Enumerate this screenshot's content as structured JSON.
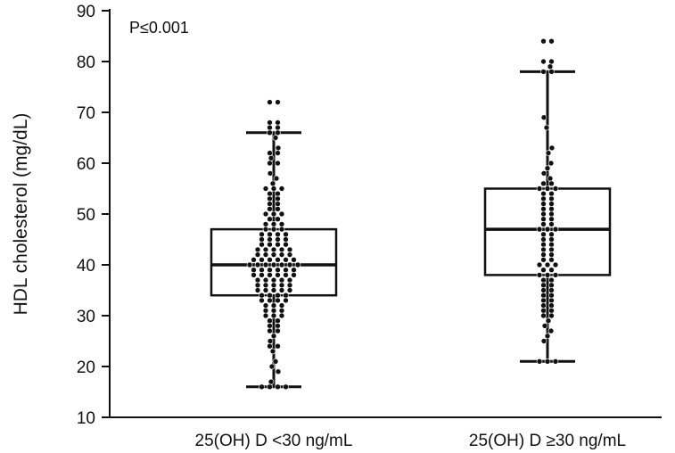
{
  "chart_data": {
    "type": "box",
    "ylabel": "HDL cholesterol (mg/dL)",
    "xlabel": "",
    "ylim": [
      10,
      90
    ],
    "yticks": [
      10,
      20,
      30,
      40,
      50,
      60,
      70,
      80,
      90
    ],
    "annotation": "P≤0.001",
    "grid": false,
    "categories": [
      "25(OH) D <30 ng/mL",
      "25(OH) D ≥30 ng/mL"
    ],
    "boxes": [
      {
        "category": "25(OH) D <30 ng/mL",
        "whisker_low": 16,
        "q1": 34,
        "median": 40,
        "q3": 47,
        "whisker_high": 66
      },
      {
        "category": "25(OH) D ≥30 ng/mL",
        "whisker_low": 21,
        "q1": 38,
        "median": 47,
        "q3": 55,
        "whisker_high": 78
      }
    ],
    "points": [
      [
        72,
        72,
        68,
        68,
        67,
        67,
        66,
        66,
        65,
        63,
        62,
        62,
        61,
        60,
        60,
        58,
        57,
        56,
        55,
        55,
        55,
        54,
        54,
        53,
        53,
        52,
        52,
        51,
        51,
        50,
        50,
        50,
        49,
        49,
        48,
        48,
        48,
        47,
        47,
        47,
        46,
        46,
        46,
        46,
        45,
        45,
        45,
        45,
        44,
        44,
        44,
        44,
        43,
        43,
        43,
        43,
        43,
        42,
        42,
        42,
        42,
        42,
        41,
        41,
        41,
        41,
        41,
        41,
        40,
        40,
        40,
        40,
        40,
        40,
        40,
        39,
        39,
        39,
        39,
        39,
        39,
        38,
        38,
        38,
        38,
        38,
        38,
        37,
        37,
        37,
        37,
        37,
        36,
        36,
        36,
        36,
        36,
        35,
        35,
        35,
        35,
        35,
        34,
        34,
        34,
        34,
        33,
        33,
        33,
        33,
        32,
        32,
        32,
        31,
        31,
        31,
        30,
        30,
        30,
        29,
        29,
        28,
        28,
        27,
        27,
        26,
        25,
        24,
        24,
        23,
        21,
        20,
        19,
        17,
        16,
        16,
        16,
        16
      ],
      [
        84,
        84,
        80,
        80,
        79,
        78,
        78,
        69,
        67,
        63,
        62,
        60,
        59,
        58,
        57,
        56,
        56,
        55,
        55,
        55,
        54,
        54,
        53,
        53,
        52,
        52,
        51,
        51,
        50,
        50,
        49,
        49,
        48,
        48,
        47,
        47,
        47,
        46,
        46,
        45,
        45,
        44,
        44,
        43,
        43,
        42,
        42,
        41,
        41,
        40,
        40,
        40,
        39,
        39,
        38,
        38,
        38,
        37,
        37,
        36,
        36,
        35,
        35,
        34,
        34,
        33,
        33,
        32,
        32,
        31,
        31,
        30,
        30,
        29,
        28,
        27,
        26,
        25,
        21,
        21,
        21
      ]
    ]
  }
}
